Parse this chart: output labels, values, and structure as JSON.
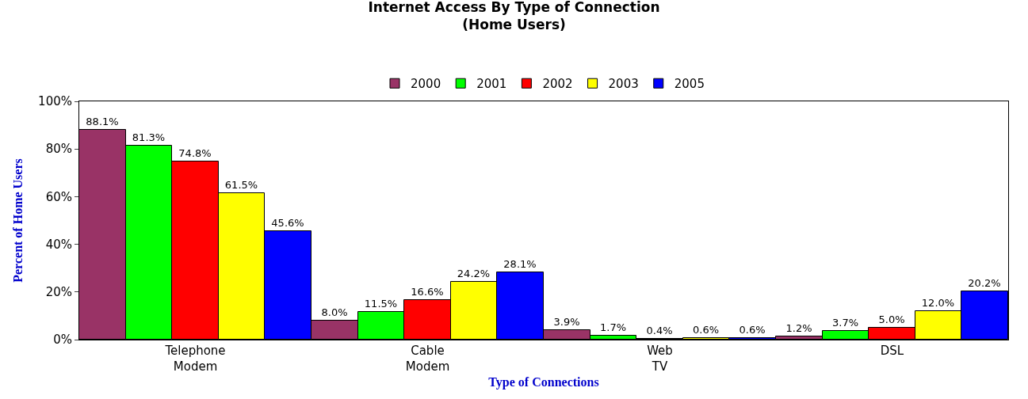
{
  "chart_data": {
    "type": "bar",
    "title": "Internet Access By Type of Connection",
    "subtitle": "(Home Users)",
    "xlabel": "Type of Connections",
    "ylabel": "Percent of Home Users",
    "categories": [
      "Telephone Modem",
      "Cable Modem",
      "Web TV",
      "DSL"
    ],
    "series": [
      {
        "name": "2000",
        "color": "#993366",
        "values": [
          88.1,
          8.0,
          3.9,
          1.2
        ],
        "value_labels": [
          "88.1%",
          "8.0%",
          "3.9%",
          "1.2%"
        ]
      },
      {
        "name": "2001",
        "color": "#00ff00",
        "values": [
          81.3,
          11.5,
          1.7,
          3.7
        ],
        "value_labels": [
          "81.3%",
          "11.5%",
          "1.7%",
          "3.7%"
        ]
      },
      {
        "name": "2002",
        "color": "#ff0000",
        "values": [
          74.8,
          16.6,
          0.4,
          5.0
        ],
        "value_labels": [
          "74.8%",
          "16.6%",
          "0.4%",
          "5.0%"
        ]
      },
      {
        "name": "2003",
        "color": "#ffff00",
        "values": [
          61.5,
          24.2,
          0.6,
          12.0
        ],
        "value_labels": [
          "61.5%",
          "24.2%",
          "0.6%",
          "12.0%"
        ]
      },
      {
        "name": "2005",
        "color": "#0000ff",
        "values": [
          45.6,
          28.1,
          0.6,
          20.2
        ],
        "value_labels": [
          "45.6%",
          "28.1%",
          "0.6%",
          "20.2%"
        ]
      }
    ],
    "ylim": [
      0,
      100
    ],
    "yticks": [
      {
        "value": 0,
        "label": "0%"
      },
      {
        "value": 20,
        "label": "20%"
      },
      {
        "value": 40,
        "label": "40%"
      },
      {
        "value": 60,
        "label": "60%"
      },
      {
        "value": 80,
        "label": "80%"
      },
      {
        "value": 100,
        "label": "100%"
      }
    ],
    "legend": "top",
    "grid": false
  }
}
